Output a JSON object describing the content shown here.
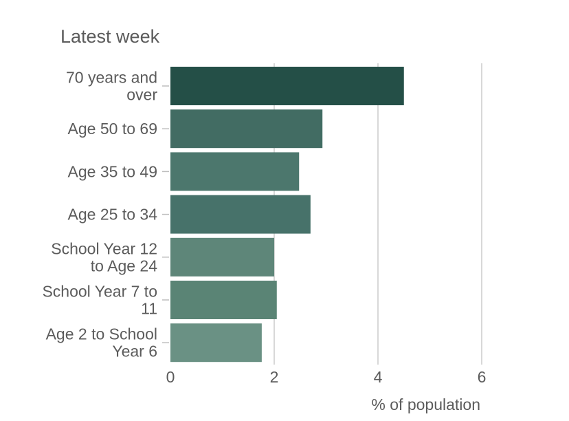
{
  "chart_data": {
    "type": "bar",
    "orientation": "horizontal",
    "title": "Latest week",
    "xlabel": "% of population",
    "ylabel": "",
    "categories": [
      "70 years and over",
      "Age 50 to 69",
      "Age 35 to 49",
      "Age 25 to 34",
      "School Year 12 to Age 24",
      "School Year 7 to 11",
      "Age 2 to School Year 6"
    ],
    "category_label_lines": [
      [
        "70 years and",
        "over"
      ],
      [
        "Age 50 to 69"
      ],
      [
        "Age 35 to 49"
      ],
      [
        "Age 25 to 34"
      ],
      [
        "School Year 12",
        "to Age 24"
      ],
      [
        "School Year 7 to",
        "11"
      ],
      [
        "Age 2 to School",
        "Year 6"
      ]
    ],
    "values": [
      4.5,
      2.93,
      2.48,
      2.7,
      2.0,
      2.05,
      1.76
    ],
    "xlim": [
      0,
      6.7
    ],
    "xticks": [
      0,
      2,
      4,
      6
    ],
    "grid": true,
    "bar_colors": [
      "#244f47",
      "#426c63",
      "#4c776d",
      "#47726a",
      "#5e8679",
      "#5a8475",
      "#6a9184"
    ]
  }
}
